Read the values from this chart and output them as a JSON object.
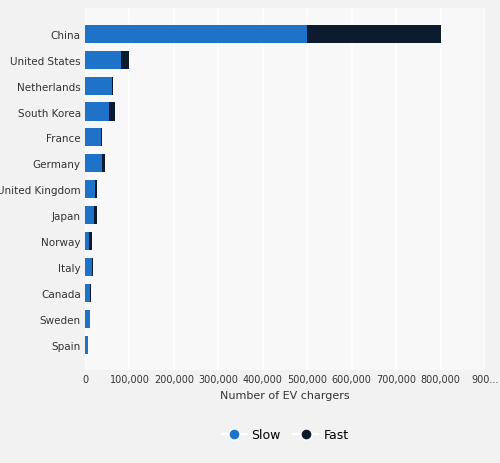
{
  "countries": [
    "China",
    "United States",
    "Netherlands",
    "South Korea",
    "France",
    "Germany",
    "United Kingdom",
    "Japan",
    "Norway",
    "Italy",
    "Canada",
    "Sweden",
    "Spain"
  ],
  "slow": [
    500000,
    80000,
    60000,
    55000,
    37000,
    38000,
    22000,
    20000,
    8000,
    16000,
    12000,
    11000,
    7000
  ],
  "fast": [
    300000,
    18000,
    2000,
    12000,
    2000,
    6000,
    5000,
    7000,
    8000,
    1000,
    800,
    700,
    600
  ],
  "slow_color": "#1e72c8",
  "fast_color": "#0d1b2e",
  "background_color": "#f2f2f2",
  "plot_bg_color": "#f8f8f8",
  "xlabel": "Number of EV chargers",
  "xlim": [
    0,
    900000
  ],
  "xticks": [
    0,
    100000,
    200000,
    300000,
    400000,
    500000,
    600000,
    700000,
    800000,
    900000
  ],
  "xtick_labels": [
    "0",
    "100,000",
    "200,000",
    "300,000",
    "400,000",
    "500,000",
    "600,000",
    "700,000",
    "800,000",
    "900..."
  ],
  "legend_slow": "Slow",
  "legend_fast": "Fast",
  "bar_height": 0.7
}
